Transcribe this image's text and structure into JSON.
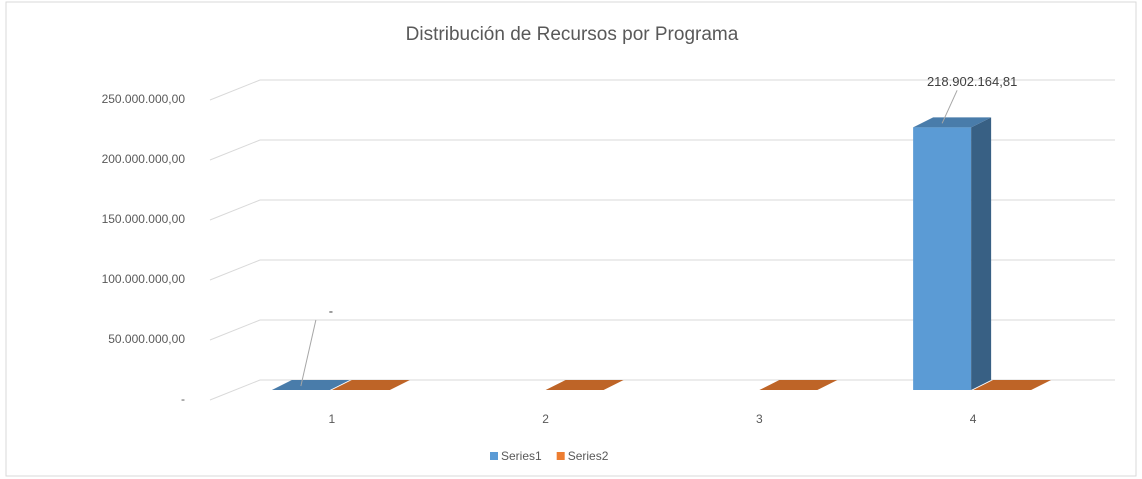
{
  "chart_data": {
    "type": "bar3d",
    "title": "Distribución de Recursos por Programa",
    "categories": [
      "1",
      "2",
      "3",
      "4"
    ],
    "series": [
      {
        "name": "Series1",
        "color": "#5b9bd5",
        "values": [
          0,
          null,
          null,
          218902164.81
        ],
        "value_labels": [
          "-",
          null,
          null,
          "218.902.164,81"
        ]
      },
      {
        "name": "Series2",
        "color": "#ed7d31",
        "values": [
          0,
          0,
          0,
          0
        ]
      }
    ],
    "ylim": [
      0,
      250000000
    ],
    "yticks": [
      {
        "value": 0,
        "label": "-"
      },
      {
        "value": 50000000,
        "label": "50.000.000,00"
      },
      {
        "value": 100000000,
        "label": "100.000.000,00"
      },
      {
        "value": 150000000,
        "label": "150.000.000,00"
      },
      {
        "value": 200000000,
        "label": "200.000.000,00"
      },
      {
        "value": 250000000,
        "label": "250.000.000,00"
      }
    ],
    "grid": true,
    "legend": "bottom"
  }
}
